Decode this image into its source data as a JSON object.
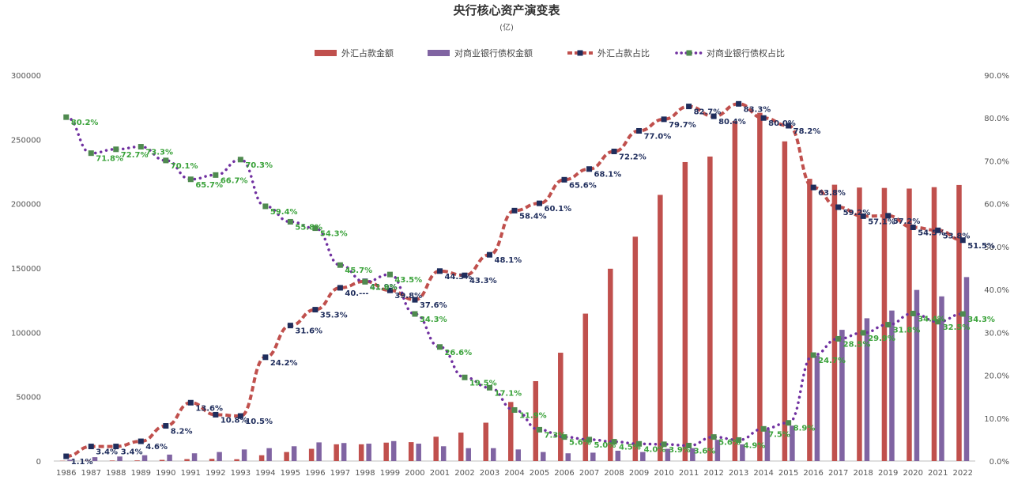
{
  "chart_data": {
    "type": "bar",
    "title": "央行核心资产演变表",
    "subtitle": "(亿)",
    "categories": [
      "1986",
      "1987",
      "1988",
      "1989",
      "1990",
      "1991",
      "1992",
      "1993",
      "1994",
      "1995",
      "1996",
      "1997",
      "1998",
      "1999",
      "2000",
      "2001",
      "2002",
      "2003",
      "2004",
      "2005",
      "2006",
      "2007",
      "2008",
      "2009",
      "2010",
      "2011",
      "2012",
      "2013",
      "2014",
      "2015",
      "2016",
      "2017",
      "2018",
      "2019",
      "2020",
      "2021",
      "2022"
    ],
    "y_left": {
      "min": 0,
      "max": 300000,
      "ticks": [
        "0",
        "50000",
        "100000",
        "150000",
        "200000",
        "250000",
        "300000"
      ]
    },
    "y_right": {
      "min": 0,
      "max": 90,
      "ticks": [
        "0.0%",
        "10.0%",
        "20.0%",
        "30.0%",
        "40.0%",
        "50.0%",
        "60.0%",
        "70.0%",
        "80.0%",
        "90.0%"
      ]
    },
    "legend_position": "top",
    "grid": false,
    "series": [
      {
        "name": "外汇占款金额",
        "type": "bar",
        "axis": "left",
        "color": "#c0504d",
        "values": [
          200,
          300,
          400,
          500,
          900,
          1500,
          1700,
          1400,
          4500,
          7000,
          9500,
          13000,
          13000,
          14300,
          14700,
          18900,
          22100,
          29800,
          45900,
          62100,
          84200,
          114600,
          149500,
          174400,
          206900,
          232400,
          236700,
          264300,
          270700,
          248500,
          219400,
          214800,
          212600,
          212300,
          211800,
          212900,
          214600
        ]
      },
      {
        "name": "对商业银行债权金额",
        "type": "bar",
        "axis": "left",
        "color": "#8064a2",
        "values": [
          1000,
          3000,
          3500,
          4500,
          5000,
          6000,
          7000,
          9000,
          10000,
          11500,
          14500,
          14000,
          13500,
          15500,
          13500,
          11500,
          10000,
          10000,
          9000,
          7000,
          6000,
          6500,
          8000,
          7000,
          9500,
          10000,
          16500,
          13000,
          24500,
          27500,
          82000,
          102000,
          111000,
          117000,
          133000,
          128000,
          143000
        ]
      },
      {
        "name": "外汇占款占比",
        "type": "line",
        "axis": "right",
        "color": "#c0504d",
        "marker_color": "#1f2d5c",
        "values": [
          1.1,
          3.4,
          3.4,
          4.6,
          8.2,
          13.6,
          10.8,
          10.5,
          24.2,
          31.6,
          35.3,
          40.4,
          41.9,
          39.8,
          37.6,
          44.3,
          43.3,
          48.1,
          58.4,
          60.1,
          65.6,
          68.1,
          72.2,
          77.0,
          79.7,
          82.7,
          80.4,
          83.3,
          80.0,
          78.2,
          63.8,
          59.2,
          57.1,
          57.2,
          54.5,
          53.8,
          51.5
        ],
        "labels": [
          "1.1%",
          "3.4%",
          "3.4%",
          "4.6%",
          "8.2%",
          "13.6%",
          "10.8%",
          "10.5%",
          "24.2%",
          "31.6%",
          "35.3%",
          "40.---",
          "41.9%",
          "39.8%",
          "37.6%",
          "44.3%",
          "43.3%",
          "48.1%",
          "58.4%",
          "60.1%",
          "65.6%",
          "68.1%",
          "72.2%",
          "77.0%",
          "79.7%",
          "82.7%",
          "80.4%",
          "83.3%",
          "80.0%",
          "78.2%",
          "63.8%",
          "59.2%",
          "57.1%",
          "57.2%",
          "54.5%",
          "53.8%",
          "51.5%"
        ]
      },
      {
        "name": "对商业银行债权占比",
        "type": "line",
        "axis": "right",
        "color": "#7030a0",
        "marker_color": "#4f8a4f",
        "values": [
          80.2,
          71.8,
          72.7,
          73.3,
          70.1,
          65.7,
          66.7,
          70.3,
          59.4,
          55.8,
          54.3,
          45.7,
          41.8,
          43.5,
          34.3,
          26.6,
          19.5,
          17.1,
          11.9,
          7.3,
          5.6,
          5.0,
          4.5,
          4.0,
          3.9,
          3.6,
          5.6,
          4.9,
          7.5,
          8.9,
          24.7,
          28.5,
          29.9,
          31.8,
          34.4,
          32.5,
          34.3
        ],
        "labels": [
          "80.2%",
          "71.8%",
          "72.7%",
          "73.3%",
          "70.1%",
          "65.7%",
          "66.7%",
          "70.3%",
          "59.4%",
          "55.8%",
          "54.3%",
          "45.7%",
          "41.8%",
          "43.5%",
          "34.3%",
          "26.6%",
          "19.5%",
          "17.1%",
          "11.9%",
          "7.3%",
          "5.6%",
          "5.0%",
          "4.5%",
          "4.0%",
          "3.9%",
          "3.6%",
          "5.6%",
          "4.9%",
          "7.5%",
          "8.9%",
          "24.7%",
          "28.5%",
          "29.9%",
          "31.8%",
          "34.4%",
          "32.5%",
          "34.3%"
        ]
      }
    ]
  }
}
